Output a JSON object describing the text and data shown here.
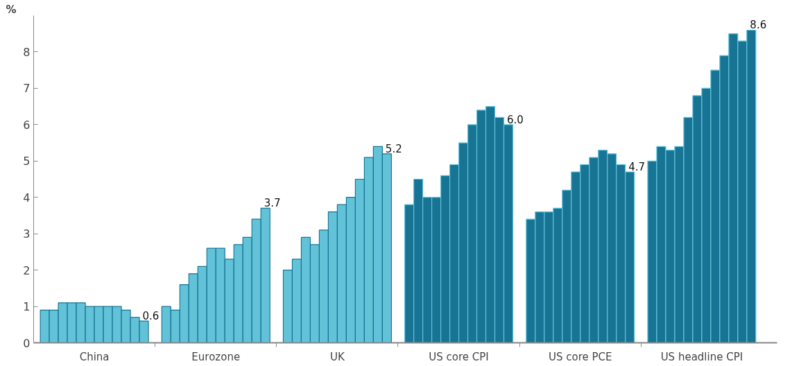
{
  "chart_data": {
    "type": "bar",
    "ylabel": "%",
    "categories": [
      "China",
      "Eurozone",
      "UK",
      "US core CPI",
      "US core PCE",
      "US headline CPI"
    ],
    "ylim": [
      0,
      9
    ],
    "yticks": [
      0,
      1,
      2,
      3,
      4,
      5,
      6,
      7,
      8
    ],
    "grid": false,
    "series": [
      {
        "colors": [
          "#62c3d8",
          "#62c3d8",
          "#62c3d8",
          "#187494",
          "#187494",
          "#187494"
        ],
        "values": [
          0.9,
          1.0,
          2.0,
          3.8,
          3.4,
          5.0
        ]
      },
      {
        "colors": [
          "#62c3d8",
          "#62c3d8",
          "#62c3d8",
          "#187494",
          "#187494",
          "#187494"
        ],
        "values": [
          0.9,
          0.9,
          2.3,
          4.5,
          3.6,
          5.4
        ]
      },
      {
        "colors": [
          "#62c3d8",
          "#62c3d8",
          "#62c3d8",
          "#187494",
          "#187494",
          "#187494"
        ],
        "values": [
          1.1,
          1.6,
          2.9,
          4.0,
          3.6,
          5.3
        ]
      },
      {
        "colors": [
          "#62c3d8",
          "#62c3d8",
          "#62c3d8",
          "#187494",
          "#187494",
          "#187494"
        ],
        "values": [
          1.1,
          1.9,
          2.7,
          4.0,
          3.7,
          5.4
        ]
      },
      {
        "colors": [
          "#62c3d8",
          "#62c3d8",
          "#62c3d8",
          "#187494",
          "#187494",
          "#187494"
        ],
        "values": [
          1.1,
          2.1,
          3.1,
          4.6,
          4.2,
          6.2
        ]
      },
      {
        "colors": [
          "#62c3d8",
          "#62c3d8",
          "#62c3d8",
          "#187494",
          "#187494",
          "#187494"
        ],
        "values": [
          1.0,
          2.6,
          3.6,
          4.9,
          4.7,
          6.8
        ]
      },
      {
        "colors": [
          "#62c3d8",
          "#62c3d8",
          "#62c3d8",
          "#187494",
          "#187494",
          "#187494"
        ],
        "values": [
          1.0,
          2.6,
          3.8,
          5.5,
          4.9,
          7.0
        ]
      },
      {
        "colors": [
          "#62c3d8",
          "#62c3d8",
          "#62c3d8",
          "#187494",
          "#187494",
          "#187494"
        ],
        "values": [
          1.0,
          2.3,
          4.0,
          6.0,
          5.1,
          7.5
        ]
      },
      {
        "colors": [
          "#62c3d8",
          "#62c3d8",
          "#62c3d8",
          "#187494",
          "#187494",
          "#187494"
        ],
        "values": [
          1.0,
          2.7,
          4.5,
          6.4,
          5.3,
          7.9
        ]
      },
      {
        "colors": [
          "#62c3d8",
          "#62c3d8",
          "#62c3d8",
          "#187494",
          "#187494",
          "#187494"
        ],
        "values": [
          0.9,
          2.9,
          5.1,
          6.5,
          5.2,
          8.5
        ]
      },
      {
        "colors": [
          "#62c3d8",
          "#62c3d8",
          "#62c3d8",
          "#187494",
          "#187494",
          "#187494"
        ],
        "values": [
          0.7,
          3.4,
          5.4,
          6.2,
          4.9,
          8.3
        ]
      },
      {
        "colors": [
          "#62c3d8",
          "#62c3d8",
          "#62c3d8",
          "#187494",
          "#187494",
          "#187494"
        ],
        "values": [
          0.6,
          3.7,
          5.2,
          6.0,
          4.7,
          8.6
        ],
        "value_labels": [
          "0.6",
          "3.7",
          "5.2",
          "6.0",
          "4.7",
          "8.6"
        ]
      }
    ]
  }
}
